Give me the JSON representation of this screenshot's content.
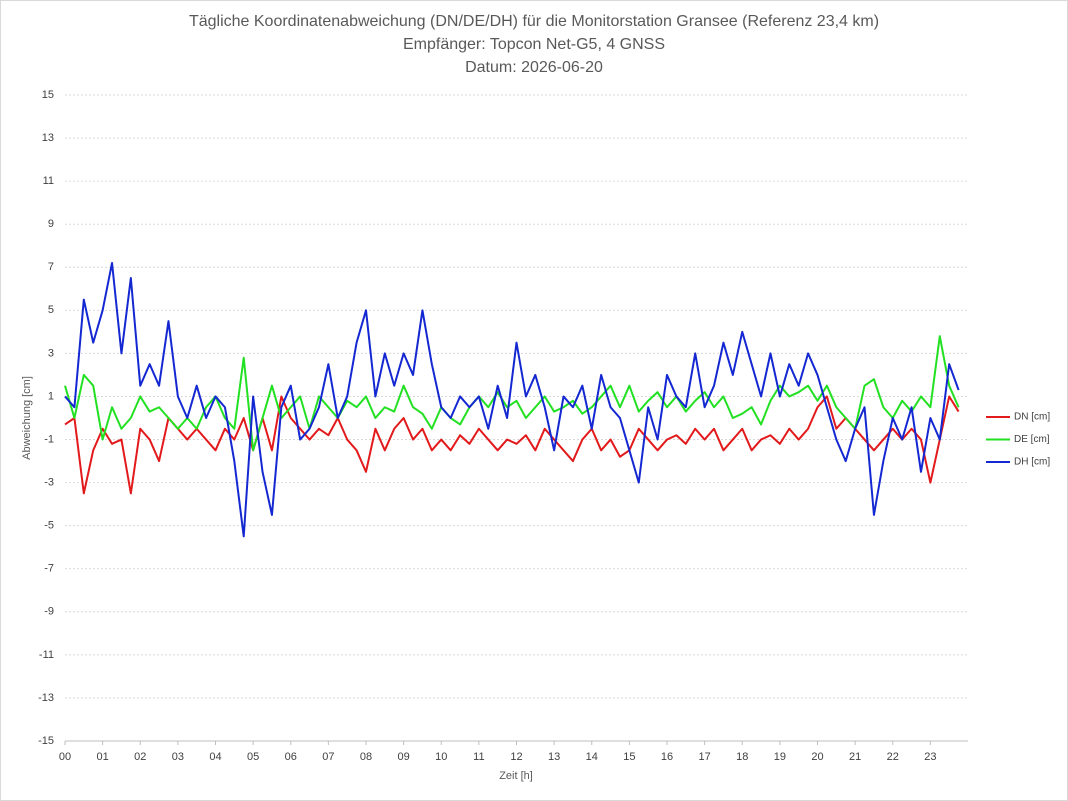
{
  "chart_data": {
    "type": "line",
    "title": "Tägliche Koordinatenabweichung (DN/DE/DH) für die Monitorstation Gransee (Referenz 23,4 km)",
    "subtitle": [
      "Empfänger: Topcon Net-G5, 4 GNSS",
      "Datum: 2026-06-20"
    ],
    "x_label": "Zeit [h]",
    "y_label": "Abweichung [cm]",
    "xlim": [
      0,
      24
    ],
    "xticks": [
      {
        "value": 0,
        "label": "00"
      },
      {
        "value": 1,
        "label": "01"
      },
      {
        "value": 2,
        "label": "02"
      },
      {
        "value": 3,
        "label": "03"
      },
      {
        "value": 4,
        "label": "04"
      },
      {
        "value": 5,
        "label": "05"
      },
      {
        "value": 6,
        "label": "06"
      },
      {
        "value": 7,
        "label": "07"
      },
      {
        "value": 8,
        "label": "08"
      },
      {
        "value": 9,
        "label": "09"
      },
      10,
      11,
      12,
      13,
      14,
      15,
      16,
      17,
      18,
      19,
      20,
      21,
      22,
      23
    ],
    "ylim": [
      -15,
      15
    ],
    "yticks": [
      -15,
      -13,
      -11,
      -9,
      -7,
      -5,
      -3,
      -1,
      1,
      3,
      5,
      7,
      9,
      11,
      13,
      15
    ],
    "grid": true,
    "legend": "right",
    "x": [
      0,
      0.25,
      0.5,
      0.75,
      1,
      1.25,
      1.5,
      1.75,
      2,
      2.25,
      2.5,
      2.75,
      3,
      3.25,
      3.5,
      3.75,
      4,
      4.25,
      4.5,
      4.75,
      5,
      5.25,
      5.5,
      5.75,
      6,
      6.25,
      6.5,
      6.75,
      7,
      7.25,
      7.5,
      7.75,
      8,
      8.25,
      8.5,
      8.75,
      9,
      9.25,
      9.5,
      9.75,
      10,
      10.25,
      10.5,
      10.75,
      11,
      11.25,
      11.5,
      11.75,
      12,
      12.25,
      12.5,
      12.75,
      13,
      13.25,
      13.5,
      13.75,
      14,
      14.25,
      14.5,
      14.75,
      15,
      15.25,
      15.5,
      15.75,
      16,
      16.25,
      16.5,
      16.75,
      17,
      17.25,
      17.5,
      17.75,
      18,
      18.25,
      18.5,
      18.75,
      19,
      19.25,
      19.5,
      19.75,
      20,
      20.25,
      20.5,
      20.75,
      21,
      21.25,
      21.5,
      21.75,
      22,
      22.25,
      22.5,
      22.75,
      23,
      23.25,
      23.5,
      23.75
    ],
    "series": [
      {
        "name": "DN [cm]",
        "color": "#e31a1c",
        "values": [
          -0.3,
          0,
          -3.5,
          -1.5,
          -0.5,
          -1.2,
          -1,
          -3.5,
          -0.5,
          -1,
          -2,
          0,
          -0.5,
          -1,
          -0.5,
          -1,
          -1.5,
          -0.5,
          -1,
          0,
          -1.5,
          0,
          -1.5,
          1,
          0,
          -0.5,
          -1,
          -0.5,
          -0.8,
          0,
          -1,
          -1.5,
          -2.5,
          -0.5,
          -1.5,
          -0.5,
          0,
          -1,
          -0.5,
          -1.5,
          -1,
          -1.5,
          -0.8,
          -1.2,
          -0.5,
          -1,
          -1.5,
          -1,
          -1.2,
          -0.8,
          -1.5,
          -0.5,
          -1,
          -1.5,
          -2,
          -1,
          -0.5,
          -1.5,
          -1,
          -1.8,
          -1.5,
          -0.5,
          -1,
          -1.5,
          -1,
          -0.8,
          -1.2,
          -0.5,
          -1,
          -0.5,
          -1.5,
          -1,
          -0.5,
          -1.5,
          -1,
          -0.8,
          -1.2,
          -0.5,
          -1,
          -0.5,
          0.5,
          1,
          -0.5,
          0,
          -0.5,
          -1,
          -1.5,
          -1,
          -0.5,
          -1,
          -0.5,
          -1,
          -3,
          -1,
          1,
          0.3
        ]
      },
      {
        "name": "DE [cm]",
        "color": "#22e022",
        "values": [
          1.5,
          0,
          2,
          1.5,
          -1,
          0.5,
          -0.5,
          0,
          1,
          0.3,
          0.5,
          0,
          -0.5,
          0,
          -0.5,
          0.5,
          1,
          0,
          -0.5,
          2.8,
          -1.5,
          0,
          1.5,
          0,
          0.5,
          1,
          -0.5,
          1,
          0.5,
          0,
          0.8,
          0.5,
          1,
          0,
          0.5,
          0.3,
          1.5,
          0.5,
          0.2,
          -0.5,
          0.5,
          0,
          -0.3,
          0.5,
          1,
          0.5,
          1.2,
          0.5,
          0.8,
          0,
          0.5,
          1,
          0.3,
          0.5,
          0.8,
          0.2,
          0.5,
          1,
          1.5,
          0.5,
          1.5,
          0.3,
          0.8,
          1.2,
          0.5,
          1,
          0.3,
          0.8,
          1.2,
          0.5,
          1,
          0,
          0.2,
          0.5,
          -0.3,
          0.8,
          1.5,
          1,
          1.2,
          1.5,
          0.8,
          1.5,
          0.5,
          0,
          -0.5,
          1.5,
          1.8,
          0.5,
          0,
          0.8,
          0.3,
          1,
          0.5,
          3.8,
          1.5,
          0.5
        ]
      },
      {
        "name": "DH [cm]",
        "color": "#1428d2",
        "values": [
          1,
          0.5,
          5.5,
          3.5,
          5,
          7.2,
          3,
          6.5,
          1.5,
          2.5,
          1.5,
          4.5,
          1,
          0,
          1.5,
          0,
          1,
          0.5,
          -2,
          -5.5,
          1,
          -2.5,
          -4.5,
          0.5,
          1.5,
          -1,
          -0.5,
          0.5,
          2.5,
          0,
          1,
          3.5,
          5,
          1,
          3,
          1.5,
          3,
          2,
          5,
          2.5,
          0.5,
          0,
          1,
          0.5,
          1,
          -0.5,
          1.5,
          0,
          3.5,
          1,
          2,
          0.5,
          -1.5,
          1,
          0.5,
          1.5,
          -0.5,
          2,
          0.5,
          0,
          -1.5,
          -3,
          0.5,
          -1,
          2,
          1,
          0.5,
          3,
          0.5,
          1.5,
          3.5,
          2,
          4,
          2.5,
          1,
          3,
          1,
          2.5,
          1.5,
          3,
          2,
          0.5,
          -1,
          -2,
          -0.5,
          0.5,
          -4.5,
          -2,
          0,
          -1,
          0.5,
          -2.5,
          0,
          -1,
          2.5,
          1.3
        ]
      }
    ]
  }
}
